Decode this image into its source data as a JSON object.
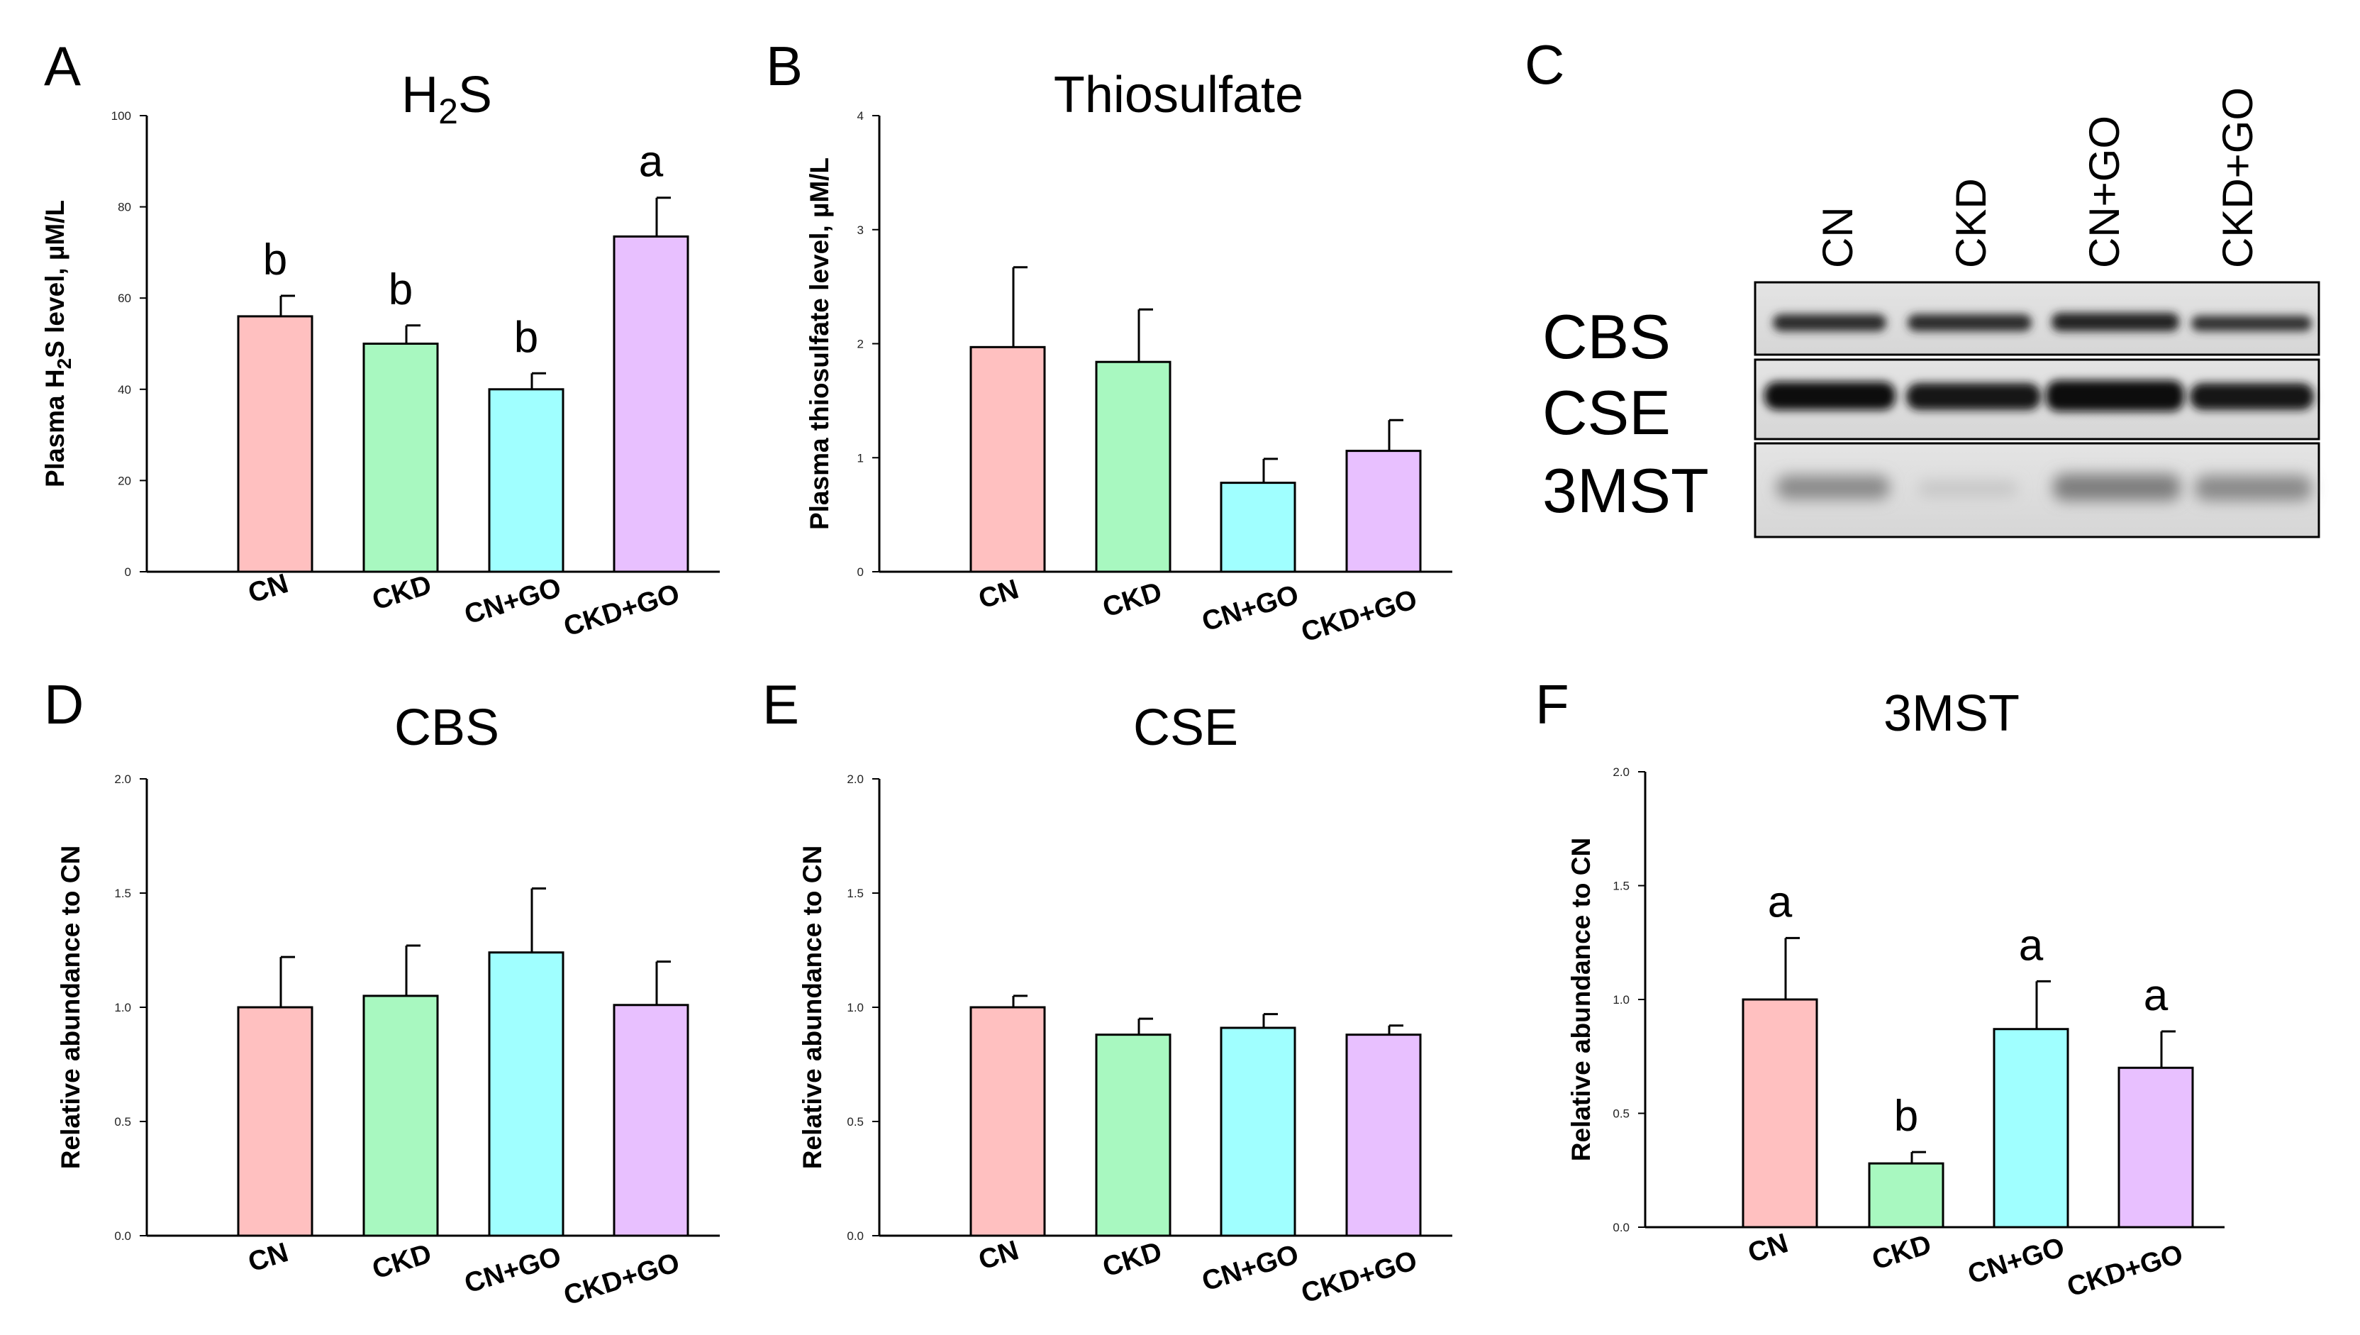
{
  "colors": {
    "CN": "#ffc0c0",
    "CKD": "#a8f8c0",
    "CN+GO": "#a0ffff",
    "CKD+GO": "#e8c0ff",
    "axis": "#000000",
    "bar_stroke": "#000000"
  },
  "chart_data": [
    {
      "panel": "A",
      "type": "bar",
      "title": "H2S",
      "title_main": "H",
      "title_sub": "2",
      "title_tail": "S",
      "ylabel_pre": "Plasma H",
      "ylabel_sub": "2",
      "ylabel_post": "S level, µM/L",
      "categories": [
        "CN",
        "CKD",
        "CN+GO",
        "CKD+GO"
      ],
      "values": [
        56,
        50,
        40,
        73.5
      ],
      "errors": [
        4.5,
        4,
        3.5,
        8.5
      ],
      "significance": [
        "b",
        "b",
        "b",
        "a"
      ],
      "ylim": [
        0,
        100
      ],
      "yticks": [
        "0",
        "20",
        "40",
        "60",
        "80",
        "100"
      ]
    },
    {
      "panel": "B",
      "type": "bar",
      "title": "Thiosulfate",
      "ylabel": "Plasma thiosulfate level, µM/L",
      "categories": [
        "CN",
        "CKD",
        "CN+GO",
        "CKD+GO"
      ],
      "values": [
        1.97,
        1.84,
        0.78,
        1.06
      ],
      "errors": [
        0.7,
        0.46,
        0.21,
        0.27
      ],
      "significance": [
        "",
        "",
        "",
        ""
      ],
      "ylim": [
        0,
        4
      ],
      "yticks": [
        "0",
        "1",
        "2",
        "3",
        "4"
      ]
    },
    {
      "panel": "D",
      "type": "bar",
      "title": "CBS",
      "ylabel": "Relative abundance to CN",
      "categories": [
        "CN",
        "CKD",
        "CN+GO",
        "CKD+GO"
      ],
      "values": [
        1.0,
        1.05,
        1.24,
        1.01
      ],
      "errors": [
        0.22,
        0.22,
        0.28,
        0.19
      ],
      "significance": [
        "",
        "",
        "",
        ""
      ],
      "ylim": [
        0,
        2
      ],
      "yticks": [
        "0.0",
        "0.5",
        "1.0",
        "1.5",
        "2.0"
      ]
    },
    {
      "panel": "E",
      "type": "bar",
      "title": "CSE",
      "ylabel": "Relative abundance to CN",
      "categories": [
        "CN",
        "CKD",
        "CN+GO",
        "CKD+GO"
      ],
      "values": [
        1.0,
        0.88,
        0.91,
        0.88
      ],
      "errors": [
        0.05,
        0.07,
        0.06,
        0.04
      ],
      "significance": [
        "",
        "",
        "",
        ""
      ],
      "ylim": [
        0,
        2
      ],
      "yticks": [
        "0.0",
        "0.5",
        "1.0",
        "1.5",
        "2.0"
      ]
    },
    {
      "panel": "F",
      "type": "bar",
      "title": "3MST",
      "ylabel": "Relative abundance to CN",
      "categories": [
        "CN",
        "CKD",
        "CN+GO",
        "CKD+GO"
      ],
      "values": [
        1.0,
        0.28,
        0.87,
        0.7
      ],
      "errors": [
        0.27,
        0.05,
        0.21,
        0.16
      ],
      "significance": [
        "a",
        "b",
        "a",
        "a"
      ],
      "ylim": [
        0,
        2
      ],
      "yticks": [
        "0.0",
        "0.5",
        "1.0",
        "1.5",
        "2.0"
      ]
    }
  ],
  "western_blot": {
    "panel": "C",
    "lanes": [
      "CN",
      "CKD",
      "CN+GO",
      "CKD+GO"
    ],
    "rows": [
      "CBS",
      "CSE",
      "3MST"
    ]
  }
}
